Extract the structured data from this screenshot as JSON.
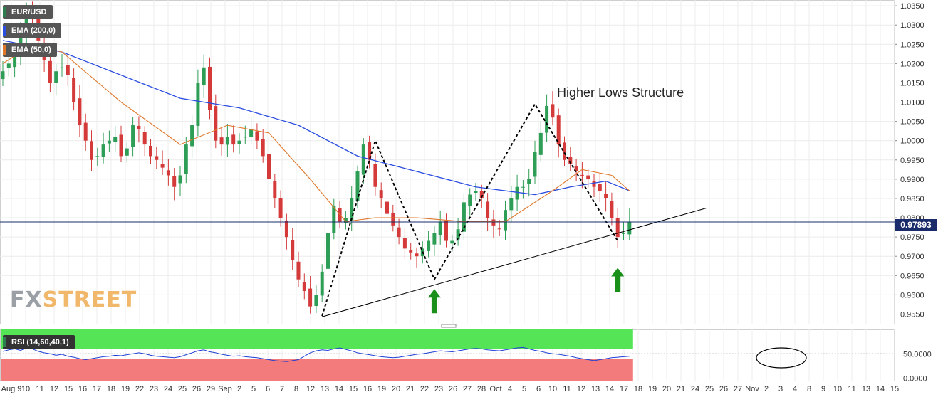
{
  "chart_data": [
    {
      "type": "candlestick",
      "symbol": "EUR/USD",
      "legend": [
        {
          "label": "EUR/USD",
          "color": "#2e7d4f"
        },
        {
          "label": "EMA (200,0)",
          "color": "#2b4de0"
        },
        {
          "label": "EMA (50,0)",
          "color": "#e0782b"
        }
      ],
      "ylim": [
        0.9525,
        1.0365
      ],
      "y_ticks": [
        "1.0350",
        "1.0300",
        "1.0250",
        "1.0200",
        "1.0150",
        "1.0100",
        "1.0050",
        "1.0000",
        "0.9950",
        "0.9900",
        "0.9850",
        "0.9800",
        "0.9750",
        "0.9700",
        "0.9650",
        "0.9600",
        "0.9550"
      ],
      "x_ticks": [
        "Aug 9",
        "10",
        "11",
        "12",
        "15",
        "16",
        "17",
        "18",
        "19",
        "22",
        "23",
        "24",
        "25",
        "26",
        "29",
        "Sep",
        "2",
        "5",
        "6",
        "7",
        "8",
        "12",
        "13",
        "14",
        "15",
        "16",
        "19",
        "20",
        "21",
        "22",
        "23",
        "26",
        "27",
        "28",
        "Oct",
        "4",
        "5",
        "6",
        "10",
        "11",
        "12",
        "13",
        "14",
        "17",
        "18",
        "19",
        "20",
        "21",
        "24",
        "25",
        "26",
        "27",
        "Nov",
        "2",
        "3",
        "4",
        "8",
        "9",
        "10",
        "11",
        "13",
        "14",
        "15"
      ],
      "last_price": "0.97893",
      "last_price_value": 0.9789,
      "annotation": "Higher Lows Structure",
      "price_path": [
        1.018,
        1.02,
        1.023,
        1.028,
        1.034,
        1.032,
        1.026,
        1.021,
        1.015,
        1.018,
        1.019,
        1.017,
        1.01,
        1.004,
        1.0,
        0.995,
        0.996,
        0.999,
        1.0,
        1.001,
        0.996,
        0.998,
        1.004,
        1.003,
        0.999,
        0.996,
        0.995,
        0.993,
        0.991,
        0.988,
        0.991,
        0.999,
        1.004,
        1.015,
        1.019,
        1.008,
        1.0,
        0.999,
        1.001,
        0.999,
        1.0,
        1.001,
        1.003,
        1.0,
        0.996,
        0.99,
        0.985,
        0.98,
        0.975,
        0.969,
        0.964,
        0.961,
        0.957,
        0.96,
        0.966,
        0.976,
        0.983,
        0.979,
        0.98,
        0.985,
        0.992,
        0.999,
        0.995,
        0.988,
        0.985,
        0.981,
        0.978,
        0.975,
        0.972,
        0.971,
        0.97,
        0.972,
        0.974,
        0.976,
        0.979,
        0.974,
        0.974,
        0.977,
        0.984,
        0.986,
        0.987,
        0.985,
        0.98,
        0.978,
        0.977,
        0.982,
        0.985,
        0.988,
        0.988,
        0.99,
        0.997,
        1.002,
        1.009,
        1.006,
        0.999,
        0.995,
        0.994,
        0.992,
        0.991,
        0.99,
        0.988,
        0.987,
        0.985,
        0.98,
        0.975,
        0.976,
        0.979
      ],
      "ema_200": [
        {
          "i": 0,
          "y": 1.026
        },
        {
          "i": 10,
          "y": 1.023
        },
        {
          "i": 20,
          "y": 1.017
        },
        {
          "i": 30,
          "y": 1.011
        },
        {
          "i": 40,
          "y": 1.0085
        },
        {
          "i": 50,
          "y": 1.004
        },
        {
          "i": 60,
          "y": 0.996
        },
        {
          "i": 70,
          "y": 0.992
        },
        {
          "i": 80,
          "y": 0.988
        },
        {
          "i": 90,
          "y": 0.986
        },
        {
          "i": 96,
          "y": 0.988
        },
        {
          "i": 102,
          "y": 0.9895
        },
        {
          "i": 106,
          "y": 0.987
        }
      ],
      "ema_50": [
        {
          "i": 0,
          "y": 1.02
        },
        {
          "i": 5,
          "y": 1.025
        },
        {
          "i": 10,
          "y": 1.023
        },
        {
          "i": 20,
          "y": 1.01
        },
        {
          "i": 30,
          "y": 0.999
        },
        {
          "i": 38,
          "y": 1.004
        },
        {
          "i": 45,
          "y": 1.002
        },
        {
          "i": 52,
          "y": 0.99
        },
        {
          "i": 58,
          "y": 0.979
        },
        {
          "i": 63,
          "y": 0.98
        },
        {
          "i": 70,
          "y": 0.98
        },
        {
          "i": 78,
          "y": 0.979
        },
        {
          "i": 85,
          "y": 0.979
        },
        {
          "i": 93,
          "y": 0.987
        },
        {
          "i": 98,
          "y": 0.9925
        },
        {
          "i": 103,
          "y": 0.991
        },
        {
          "i": 106,
          "y": 0.987
        }
      ],
      "zigzag": [
        {
          "i": 54,
          "y": 0.9545
        },
        {
          "i": 63,
          "y": 1.0
        },
        {
          "i": 73,
          "y": 0.964
        },
        {
          "i": 90,
          "y": 1.0095
        },
        {
          "i": 104,
          "y": 0.974
        }
      ],
      "trendline": [
        {
          "i": 54,
          "y": 0.9543
        },
        {
          "i": 119,
          "y": 0.9825
        }
      ],
      "price_line": 0.9789,
      "arrows": [
        {
          "i": 73,
          "y": 0.9615
        },
        {
          "i": 104,
          "y": 0.967
        }
      ]
    },
    {
      "type": "line",
      "name": "RSI (14,60,40,1)",
      "ylim": [
        -5,
        100
      ],
      "y_ticks": [
        "50.0000",
        "0.0000"
      ],
      "overbought": 60,
      "oversold": 40,
      "overbought_color": "#55e455",
      "oversold_color": "#f47b7b",
      "values": [
        55,
        58,
        60,
        57,
        62,
        60,
        55,
        52,
        50,
        47,
        49,
        45,
        43,
        40,
        38,
        40,
        42,
        44,
        45,
        47,
        46,
        48,
        50,
        52,
        50,
        47,
        45,
        44,
        43,
        42,
        44,
        48,
        52,
        56,
        58,
        54,
        52,
        49,
        47,
        45,
        46,
        44,
        43,
        42,
        40,
        38,
        36,
        35,
        34,
        36,
        38,
        45,
        52,
        56,
        58,
        57,
        60,
        62,
        59,
        56,
        52,
        50,
        48,
        46,
        44,
        43,
        42,
        43,
        45,
        47,
        49,
        50,
        52,
        54,
        56,
        55,
        54,
        56,
        58,
        60,
        61,
        60,
        58,
        57,
        56,
        58,
        60,
        62,
        63,
        60,
        57,
        55,
        52,
        50,
        49,
        47,
        45,
        42,
        40,
        38,
        36,
        38,
        40,
        42,
        43,
        44,
        45
      ]
    }
  ]
}
